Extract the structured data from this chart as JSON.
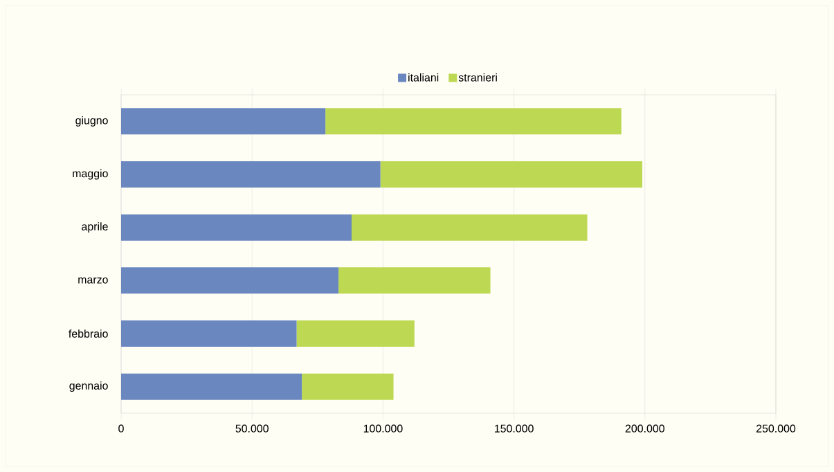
{
  "chart_data": {
    "type": "bar",
    "orientation": "horizontal",
    "stacked": true,
    "categories": [
      "giugno",
      "maggio",
      "aprile",
      "marzo",
      "febbraio",
      "gennaio"
    ],
    "series": [
      {
        "name": "italiani",
        "color": "#6a87c0",
        "values": [
          78000,
          99000,
          88000,
          83000,
          67000,
          69000
        ]
      },
      {
        "name": "stranieri",
        "color": "#bdd852",
        "values": [
          113000,
          100000,
          90000,
          58000,
          45000,
          35000
        ]
      }
    ],
    "xlim": [
      0,
      250000
    ],
    "xticks": [
      0,
      {
        "value": 50000,
        "label": "50.000"
      },
      {
        "value": 100000,
        "label": "100.000"
      },
      {
        "value": 150000,
        "label": "150.000"
      },
      {
        "value": 200000,
        "label": "200.000"
      },
      {
        "value": 250000,
        "label": "250.000"
      }
    ],
    "grid": "x",
    "legend": "top"
  }
}
